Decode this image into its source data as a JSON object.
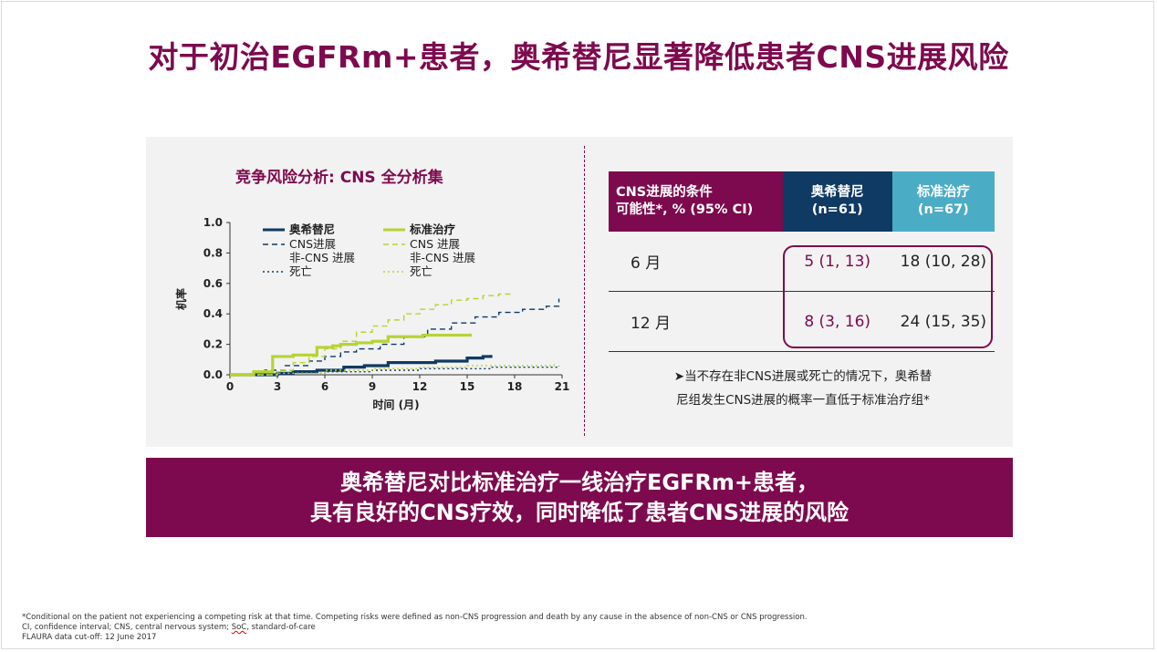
{
  "title": "对于初治EGFRm+患者，奥希替尼显著降低患者CNS进展风险",
  "chart_data": {
    "type": "line",
    "title": "竞争风险分析: CNS 全分析集",
    "xlabel": "时间 (月)",
    "ylabel": "机率",
    "xlim": [
      0,
      21
    ],
    "ylim": [
      0,
      1.0
    ],
    "xticks": [
      "0",
      "3",
      "6",
      "9",
      "12",
      "15",
      "18",
      "21"
    ],
    "yticks": [
      "0.0",
      "0.2",
      "0.4",
      "0.6",
      "0.8",
      "1.0"
    ],
    "legend": {
      "osi_header": "奥希替尼",
      "osi_cns": "CNS进展",
      "osi_noncns": "非-CNS 进展",
      "osi_death": "死亡",
      "soc_header": "标准治疗",
      "soc_cns": "CNS 进展",
      "soc_noncns": "非-CNS 进展",
      "soc_death": "死亡"
    },
    "series": [
      {
        "group": "osi",
        "style": "solid",
        "x": [
          0,
          3,
          4,
          5.5,
          7.2,
          8.5,
          10,
          13,
          15,
          16,
          16.5
        ],
        "y": [
          0,
          0.01,
          0.02,
          0.03,
          0.05,
          0.06,
          0.08,
          0.09,
          0.11,
          0.12,
          0.13
        ]
      },
      {
        "group": "osi",
        "style": "dash",
        "x": [
          0,
          2.2,
          3.5,
          5,
          6,
          7,
          8,
          9.5,
          11,
          12.5,
          14,
          15.5,
          17,
          18.5,
          20,
          20.8
        ],
        "y": [
          0,
          0.03,
          0.06,
          0.09,
          0.12,
          0.15,
          0.17,
          0.2,
          0.25,
          0.3,
          0.34,
          0.38,
          0.41,
          0.43,
          0.45,
          0.5
        ]
      },
      {
        "group": "osi",
        "style": "dot",
        "x": [
          0,
          3,
          6,
          9,
          12,
          16.5,
          20.8
        ],
        "y": [
          0,
          0.01,
          0.02,
          0.03,
          0.04,
          0.05,
          0.06
        ]
      },
      {
        "group": "soc",
        "style": "solid",
        "x": [
          0,
          1.5,
          2.7,
          4,
          5.5,
          6.5,
          7,
          8,
          9,
          10,
          11,
          12.2,
          13,
          14,
          15.2
        ],
        "y": [
          0,
          0.02,
          0.12,
          0.13,
          0.18,
          0.19,
          0.2,
          0.21,
          0.22,
          0.25,
          0.25,
          0.26,
          0.26,
          0.26,
          0.27
        ]
      },
      {
        "group": "soc",
        "style": "dash",
        "x": [
          0,
          3,
          4,
          5,
          6,
          7,
          8,
          9,
          10,
          11,
          12,
          13,
          14,
          15,
          16,
          17,
          17.8
        ],
        "y": [
          0,
          0.03,
          0.08,
          0.12,
          0.17,
          0.22,
          0.28,
          0.32,
          0.36,
          0.4,
          0.43,
          0.46,
          0.49,
          0.5,
          0.52,
          0.53,
          0.53
        ]
      },
      {
        "group": "soc",
        "style": "dot",
        "x": [
          0,
          3,
          6,
          9,
          12,
          15,
          18,
          20.5
        ],
        "y": [
          0,
          0.01,
          0.03,
          0.04,
          0.05,
          0.06,
          0.06,
          0.07
        ]
      }
    ],
    "colors": {
      "osi": "#0f3a63",
      "soc": "#b6d334"
    }
  },
  "table": {
    "header_col1_line1": "CNS进展的条件",
    "header_col1_line2": "可能性*, % (95% CI)",
    "header_col2_line1": "奥希替尼",
    "header_col2_line2": "(n=61)",
    "header_col3_line1": "标准治疗",
    "header_col3_line2": "(n=67)",
    "rows": [
      {
        "label": "6 月",
        "osi": "5 (1, 13)",
        "soc": "18 (10, 28)"
      },
      {
        "label": "12 月",
        "osi": "8 (3, 16)",
        "soc": "24 (15, 35)"
      }
    ]
  },
  "note_line1": "➤当不存在非CNS进展或死亡的情况下，奥希替",
  "note_line2": "尼组发生CNS进展的概率一直低于标准治疗组*",
  "banner_line1": "奥希替尼对比标准治疗一线治疗EGFRm+患者，",
  "banner_line2": "具有良好的CNS疗效，同时降低了患者CNS进展的风险",
  "footnote_line1": "*Conditional on the patient not experiencing a competing risk at that time. Competing risks were defined as non-CNS progression and death by any cause in the absence of non-CNS or CNS progression.",
  "footnote_line2_a": "CI, confidence interval; CNS, central nervous system; ",
  "footnote_line2_soc": "SoC",
  "footnote_line2_b": ", standard-of-care",
  "footnote_line3": "FLAURA data cut-off: 12 June 2017"
}
